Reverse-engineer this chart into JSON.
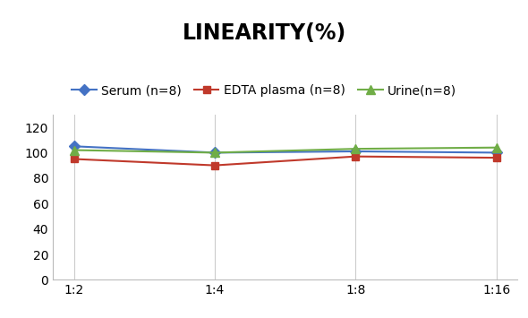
{
  "title": "LINEARITY(%)",
  "x_labels": [
    "1:2",
    "1:4",
    "1:8",
    "1:16"
  ],
  "series": [
    {
      "label": "Serum (n=8)",
      "values": [
        105,
        100,
        101,
        100
      ],
      "color": "#4472C4",
      "marker": "D",
      "markersize": 6
    },
    {
      "label": "EDTA plasma (n=8)",
      "values": [
        95,
        90,
        97,
        96
      ],
      "color": "#C0392B",
      "marker": "s",
      "markersize": 6
    },
    {
      "label": "Urine(n=8)",
      "values": [
        102,
        100,
        103,
        104
      ],
      "color": "#70AD47",
      "marker": "^",
      "markersize": 7
    }
  ],
  "ylim": [
    0,
    130
  ],
  "yticks": [
    0,
    20,
    40,
    60,
    80,
    100,
    120
  ],
  "title_fontsize": 17,
  "legend_fontsize": 10,
  "tick_fontsize": 10,
  "background_color": "#FFFFFF",
  "grid_color": "#CCCCCC"
}
